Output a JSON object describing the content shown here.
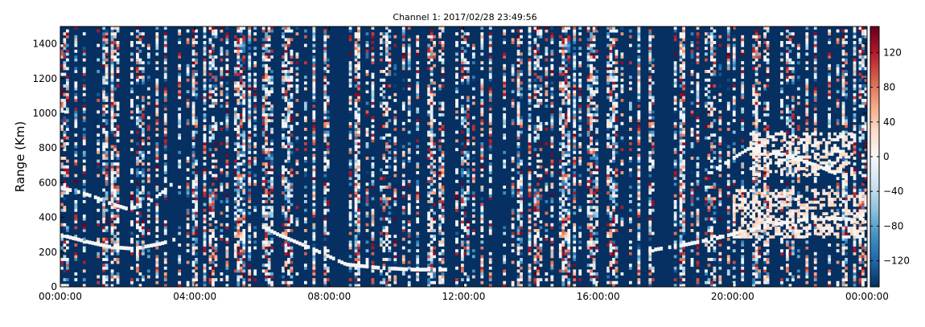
{
  "chart_data": {
    "type": "heatmap",
    "title": "Channel 1: 2017/02/28 23:49:56",
    "xlabel": "",
    "ylabel": "Range (Km)",
    "x_tick_labels": [
      "00:00:00",
      "04:00:00",
      "08:00:00",
      "12:00:00",
      "16:00:00",
      "20:00:00",
      "00:00:00"
    ],
    "x_tick_hours": [
      0,
      4,
      8,
      12,
      16,
      20,
      24
    ],
    "xlim_hours": [
      0,
      24
    ],
    "ylim": [
      0,
      1500
    ],
    "y_ticks": [
      0,
      200,
      400,
      600,
      800,
      1000,
      1200,
      1400
    ],
    "colorbar": {
      "range": [
        -150,
        150
      ],
      "ticks": [
        -120,
        -80,
        -40,
        0,
        40,
        80,
        120
      ],
      "colormap": [
        "#053061",
        "#2166ac",
        "#4393c3",
        "#92c5de",
        "#d1e5f0",
        "#f7f7f7",
        "#fddbc7",
        "#f4a582",
        "#d6604d",
        "#b2182b",
        "#67001f"
      ]
    },
    "background_value": -150,
    "echo_traces": [
      {
        "name": "",
        "points": [
          [
            0.0,
            570
          ],
          [
            0.5,
            550
          ],
          [
            1.0,
            520
          ],
          [
            1.5,
            480
          ],
          [
            2.0,
            450
          ],
          [
            2.5,
            470
          ],
          [
            3.0,
            540
          ],
          [
            3.3,
            590
          ]
        ]
      },
      {
        "name": "",
        "points": [
          [
            0.0,
            300
          ],
          [
            0.8,
            260
          ],
          [
            1.5,
            230
          ],
          [
            2.2,
            220
          ],
          [
            3.0,
            250
          ],
          [
            3.5,
            280
          ]
        ]
      },
      {
        "name": "",
        "points": [
          [
            5.8,
            370
          ],
          [
            6.5,
            300
          ],
          [
            7.5,
            220
          ],
          [
            8.5,
            130
          ],
          [
            9.5,
            110
          ],
          [
            10.5,
            100
          ],
          [
            11.5,
            100
          ]
        ]
      },
      {
        "name": "",
        "points": [
          [
            17.5,
            210
          ],
          [
            18.5,
            240
          ],
          [
            19.5,
            280
          ],
          [
            20.5,
            330
          ],
          [
            21.5,
            370
          ],
          [
            22.5,
            400
          ],
          [
            23.5,
            390
          ]
        ]
      },
      {
        "name": "",
        "points": [
          [
            19.5,
            680
          ],
          [
            20.5,
            800
          ],
          [
            21.5,
            760
          ],
          [
            22.5,
            700
          ],
          [
            23.5,
            620
          ]
        ]
      }
    ],
    "echo_patches": [
      {
        "x": [
          20.0,
          24.0
        ],
        "y": [
          280,
          560
        ],
        "v": 20
      },
      {
        "x": [
          20.5,
          23.5
        ],
        "y": [
          640,
          880
        ],
        "v": 15
      }
    ]
  }
}
